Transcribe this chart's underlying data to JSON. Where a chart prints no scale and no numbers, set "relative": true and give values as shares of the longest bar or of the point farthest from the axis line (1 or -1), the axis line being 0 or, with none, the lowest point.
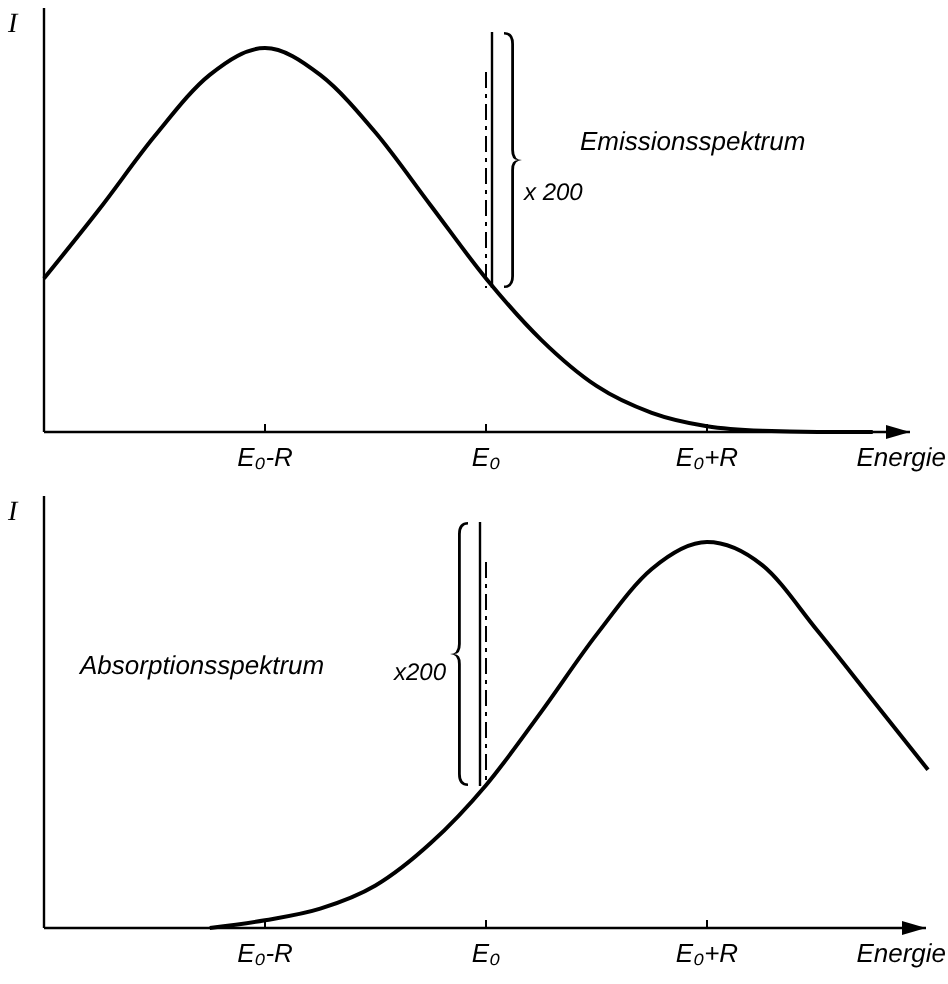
{
  "chart_data": [
    {
      "type": "line",
      "relative": true,
      "ylabel": "I",
      "xlabel": "Energie",
      "categories": [
        null,
        null,
        null,
        null,
        "E₀-R",
        null,
        null,
        null,
        "E₀",
        null,
        null,
        null,
        "E₀+R",
        null,
        null,
        null,
        null
      ],
      "grid": false,
      "line_style": "solid",
      "annotations": [
        "Emissionsspektrum",
        "x 200"
      ],
      "series": [
        {
          "color": "#000000",
          "values": [
            0.4,
            0.58,
            0.77,
            0.93,
            1.0,
            0.93,
            0.78,
            0.59,
            0.4,
            0.24,
            0.12,
            0.05,
            0.015,
            0.003,
            0.0,
            0.0,
            null
          ]
        }
      ]
    },
    {
      "type": "line",
      "relative": true,
      "ylabel": "I",
      "xlabel": "Energie",
      "categories": [
        null,
        null,
        null,
        null,
        "E₀-R",
        null,
        null,
        null,
        "E₀",
        null,
        null,
        null,
        "E₀+R",
        null,
        null,
        null,
        null
      ],
      "grid": false,
      "line_style": "solid",
      "annotations": [
        "Absorptionsspektrum",
        "x200"
      ],
      "series": [
        {
          "color": "#000000",
          "values": [
            null,
            null,
            null,
            0.0,
            0.02,
            0.05,
            0.11,
            0.22,
            0.37,
            0.56,
            0.76,
            0.93,
            1.0,
            0.94,
            0.77,
            0.59,
            0.41
          ]
        }
      ]
    }
  ]
}
